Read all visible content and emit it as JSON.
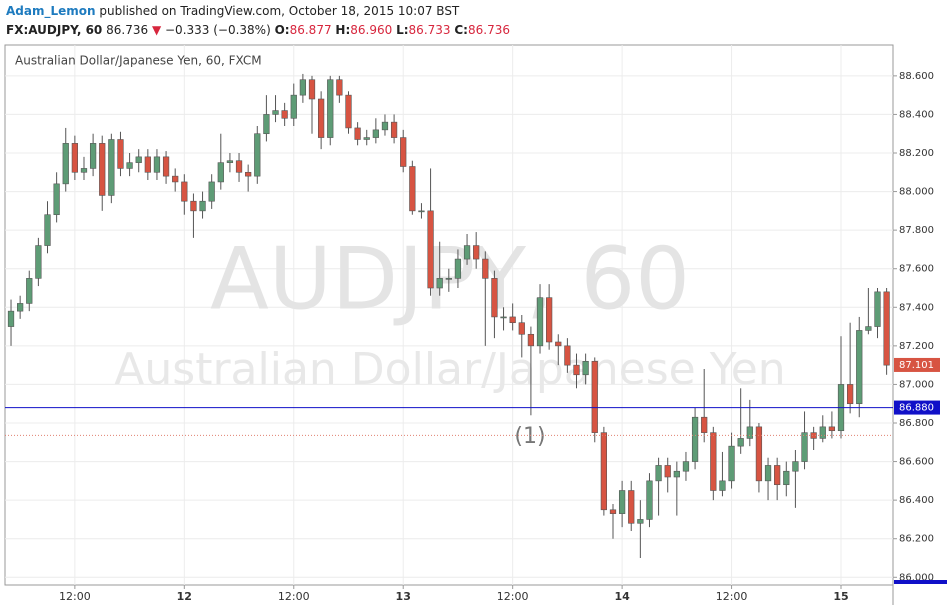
{
  "header": {
    "author": "Adam_Lemon",
    "published": "published on TradingView.com, October 18, 2015 10:07 BST",
    "symbol": "FX:AUDJPY, 60",
    "price": "86.736",
    "arrow": "▼",
    "change": "−0.333 (−0.38%)",
    "open_label": "O:",
    "open": "86.877",
    "high_label": "H:",
    "high": "86.960",
    "low_label": "L:",
    "low": "86.733",
    "close_label": "C:",
    "close": "86.736"
  },
  "chart_data": {
    "type": "candlestick",
    "legend": "Australian Dollar/Japanese Yen, 60, FXCM",
    "watermark": "AUDJPY, 60",
    "watermark_subtitle": "Australian Dollar/Japanese Yen",
    "annotations": [
      "(1)"
    ],
    "up_color": "#5e9c76",
    "down_color": "#d75442",
    "xlim": [
      -0.66,
      96.7
    ],
    "xticks": [
      {
        "value": 7,
        "label": "12:00"
      },
      {
        "value": 19,
        "label": "12"
      },
      {
        "value": 31,
        "label": "12:00"
      },
      {
        "value": 43,
        "label": "13"
      },
      {
        "value": 55,
        "label": "12:00"
      },
      {
        "value": 67,
        "label": "14"
      },
      {
        "value": 79,
        "label": "12:00"
      },
      {
        "value": 91,
        "label": "15"
      }
    ],
    "ylim": [
      85.96,
      88.76
    ],
    "yticks": [
      {
        "value": 86.0,
        "label": "86.000"
      },
      {
        "value": 86.2,
        "label": "86.200"
      },
      {
        "value": 86.4,
        "label": "86.400"
      },
      {
        "value": 86.6,
        "label": "86.600"
      },
      {
        "value": 86.8,
        "label": "86.800"
      },
      {
        "value": 87.0,
        "label": "87.000"
      },
      {
        "value": 87.2,
        "label": "87.200"
      },
      {
        "value": 87.4,
        "label": "87.400"
      },
      {
        "value": 87.6,
        "label": "87.600"
      },
      {
        "value": 87.8,
        "label": "87.800"
      },
      {
        "value": 88.0,
        "label": "88.000"
      },
      {
        "value": 88.2,
        "label": "88.200"
      },
      {
        "value": 88.4,
        "label": "88.400"
      },
      {
        "value": 88.6,
        "label": "88.600"
      }
    ],
    "grid": true,
    "levels": [
      {
        "value": 86.88,
        "label": "86.880",
        "color": "#1010c8"
      },
      {
        "value": 87.101,
        "label": 87.101,
        "color": "#d75442"
      },
      {
        "value": 86.736,
        "color": "#e08070"
      }
    ],
    "open": [
      87.3,
      87.38,
      87.42,
      87.55,
      87.72,
      87.88,
      88.04,
      88.25,
      88.1,
      88.12,
      88.25,
      87.98,
      88.27,
      88.12,
      88.15,
      88.18,
      88.1,
      88.18,
      88.08,
      88.05,
      87.95,
      87.9,
      87.95,
      88.05,
      88.15,
      88.16,
      88.1,
      88.08,
      88.3,
      88.4,
      88.42,
      88.38,
      88.5,
      88.58,
      88.48,
      88.28,
      88.58,
      88.5,
      88.33,
      88.27,
      88.28,
      88.32,
      88.36,
      88.28,
      88.13,
      87.9,
      87.9,
      87.5,
      87.55,
      87.55,
      87.65,
      87.72,
      87.65,
      87.55,
      87.35,
      87.35,
      87.32,
      87.26,
      87.2,
      87.45,
      87.22,
      87.2,
      87.1,
      87.05,
      87.12,
      86.75,
      86.35,
      86.33,
      86.45,
      86.28,
      86.3,
      86.5,
      86.58,
      86.52,
      86.55,
      86.6,
      86.83,
      86.75,
      86.45,
      86.5,
      86.68,
      86.72,
      86.78,
      86.5,
      86.58,
      86.48,
      86.55,
      86.6,
      86.75,
      86.72,
      86.78,
      86.76,
      87.0,
      86.9,
      87.28,
      87.3,
      87.48
    ],
    "high": [
      87.44,
      87.46,
      87.59,
      87.76,
      87.95,
      88.1,
      88.33,
      88.29,
      88.18,
      88.3,
      88.29,
      88.3,
      88.31,
      88.2,
      88.22,
      88.22,
      88.22,
      88.21,
      88.12,
      88.09,
      87.99,
      88.0,
      88.09,
      88.3,
      88.2,
      88.2,
      88.14,
      88.34,
      88.5,
      88.5,
      88.46,
      88.56,
      88.61,
      88.6,
      88.52,
      88.6,
      88.6,
      88.52,
      88.36,
      88.32,
      88.38,
      88.4,
      88.4,
      88.32,
      88.16,
      87.94,
      88.12,
      87.74,
      87.6,
      87.7,
      87.78,
      87.79,
      87.69,
      87.59,
      87.4,
      87.42,
      87.36,
      87.3,
      87.52,
      87.52,
      87.26,
      87.24,
      87.16,
      87.16,
      87.14,
      86.78,
      86.38,
      86.5,
      86.5,
      86.4,
      86.54,
      86.62,
      86.62,
      86.6,
      86.65,
      86.88,
      87.08,
      86.78,
      86.65,
      86.75,
      86.98,
      86.92,
      86.8,
      86.62,
      86.62,
      86.6,
      86.66,
      86.86,
      86.78,
      86.84,
      86.86,
      87.25,
      87.32,
      87.35,
      87.5,
      87.5,
      87.5
    ],
    "low": [
      87.2,
      87.34,
      87.38,
      87.51,
      87.68,
      87.84,
      88.0,
      88.06,
      88.06,
      88.08,
      87.9,
      87.94,
      88.08,
      88.08,
      88.1,
      88.06,
      88.06,
      88.04,
      88.0,
      87.88,
      87.76,
      87.86,
      87.91,
      88.01,
      88.1,
      88.05,
      88.0,
      88.04,
      88.26,
      88.36,
      88.34,
      88.34,
      88.46,
      88.3,
      88.22,
      88.24,
      88.46,
      88.3,
      88.24,
      88.24,
      88.25,
      88.29,
      88.25,
      88.1,
      87.88,
      87.86,
      87.46,
      87.46,
      87.48,
      87.5,
      87.62,
      87.6,
      87.2,
      87.24,
      87.28,
      87.28,
      87.14,
      86.84,
      87.16,
      87.18,
      87.1,
      87.06,
      86.98,
      87.0,
      86.7,
      86.32,
      86.2,
      86.26,
      86.24,
      86.1,
      86.26,
      86.32,
      86.44,
      86.32,
      86.5,
      86.56,
      86.7,
      86.4,
      86.42,
      86.46,
      86.64,
      86.68,
      86.44,
      86.4,
      86.4,
      86.42,
      86.36,
      86.56,
      86.66,
      86.7,
      86.72,
      86.72,
      86.85,
      86.83,
      87.26,
      87.24,
      87.05
    ],
    "close": [
      87.38,
      87.42,
      87.55,
      87.72,
      87.88,
      88.04,
      88.25,
      88.1,
      88.12,
      88.25,
      87.98,
      88.27,
      88.12,
      88.15,
      88.18,
      88.1,
      88.18,
      88.08,
      88.05,
      87.95,
      87.9,
      87.95,
      88.05,
      88.15,
      88.16,
      88.1,
      88.08,
      88.3,
      88.4,
      88.42,
      88.38,
      88.5,
      88.58,
      88.48,
      88.28,
      88.58,
      88.5,
      88.33,
      88.27,
      88.28,
      88.32,
      88.36,
      88.28,
      88.13,
      87.9,
      87.9,
      87.5,
      87.55,
      87.55,
      87.65,
      87.72,
      87.65,
      87.55,
      87.35,
      87.35,
      87.32,
      87.26,
      87.2,
      87.45,
      87.22,
      87.2,
      87.1,
      87.05,
      87.12,
      86.75,
      86.35,
      86.33,
      86.45,
      86.28,
      86.3,
      86.5,
      86.58,
      86.52,
      86.55,
      86.6,
      86.83,
      86.75,
      86.45,
      86.5,
      86.68,
      86.72,
      86.78,
      86.5,
      86.58,
      86.48,
      86.55,
      86.6,
      86.75,
      86.72,
      86.78,
      86.76,
      87.0,
      86.9,
      87.28,
      87.3,
      87.48,
      87.1
    ]
  }
}
